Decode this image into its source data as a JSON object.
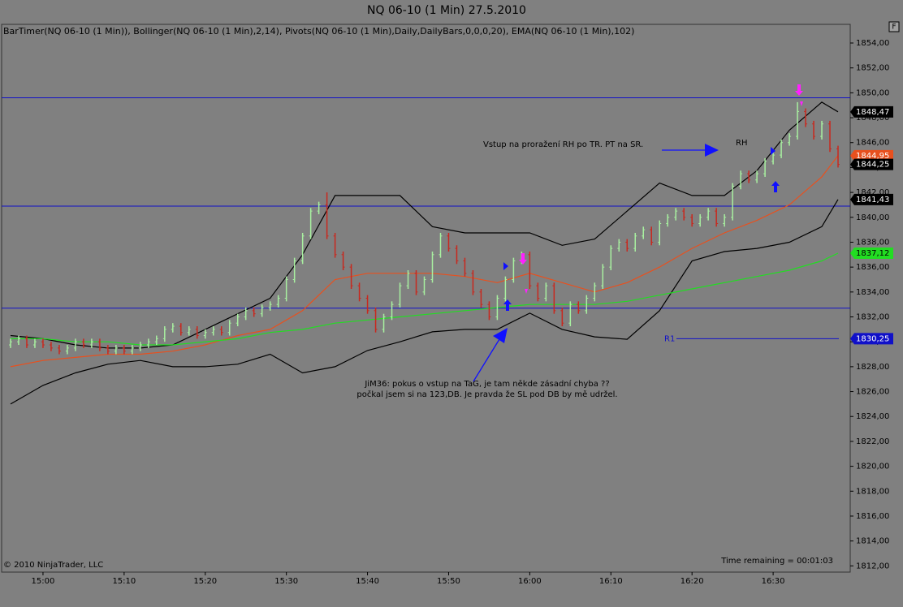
{
  "chart_data": {
    "type": "ohlc",
    "title": "NQ 06-10 (1 Min)  27.5.2010",
    "subtitle": "BarTimer(NQ 06-10 (1 Min)), Bollinger(NQ 06-10 (1 Min),2,14), Pivots(NQ 06-10 (1 Min),Daily,DailyBars,0,0,0,20), EMA(NQ 06-10 (1 Min),102)",
    "button": "F",
    "copyright": "© 2010 NinjaTrader, LLC",
    "time_remaining": "Time remaining = 00:01:03",
    "annotations": [
      "Vstup na proražení RH po TR. PT na SR.",
      "RH",
      "JiM36: pokus o vstup na TaG, je tam někde zásadní chyba ??",
      "počkal jsem si na 123,DB. Je pravda že SL pod  DB by mě udržel."
    ],
    "up_color": "#a8f0a0",
    "down_color": "#c8281e",
    "xlim": [
      -5.1,
      99.5
    ],
    "ylim": [
      1811.5,
      1855.5
    ],
    "xticks": [
      {
        "value": 0,
        "label": "15:00"
      },
      {
        "value": 10,
        "label": "15:10"
      },
      {
        "value": 20,
        "label": "15:20"
      },
      {
        "value": 30,
        "label": "15:30"
      },
      {
        "value": 40,
        "label": "15:40"
      },
      {
        "value": 50,
        "label": "15:50"
      },
      {
        "value": 60,
        "label": "16:00"
      },
      {
        "value": 70,
        "label": "16:10"
      },
      {
        "value": 80,
        "label": "16:20"
      },
      {
        "value": 90,
        "label": "16:30"
      }
    ],
    "yticks": [
      {
        "value": 1812,
        "label": "1812,00"
      },
      {
        "value": 1814,
        "label": "1814,00"
      },
      {
        "value": 1816,
        "label": "1816,00"
      },
      {
        "value": 1818,
        "label": "1818,00"
      },
      {
        "value": 1820,
        "label": "1820,00"
      },
      {
        "value": 1822,
        "label": "1822,00"
      },
      {
        "value": 1824,
        "label": "1824,00"
      },
      {
        "value": 1826,
        "label": "1826,00"
      },
      {
        "value": 1828,
        "label": "1828,00"
      },
      {
        "value": 1830,
        "label": "1830,00"
      },
      {
        "value": 1832,
        "label": "1832,00"
      },
      {
        "value": 1834,
        "label": "1834,00"
      },
      {
        "value": 1836,
        "label": "1836,00"
      },
      {
        "value": 1838,
        "label": "1838,00"
      },
      {
        "value": 1840,
        "label": "1840,00"
      },
      {
        "value": 1842,
        "label": "1842,00"
      },
      {
        "value": 1844,
        "label": "1844,00"
      },
      {
        "value": 1846,
        "label": "1846,00"
      },
      {
        "value": 1848,
        "label": "1848,00"
      },
      {
        "value": 1850,
        "label": "1850,00"
      },
      {
        "value": 1852,
        "label": "1852,00"
      },
      {
        "value": 1854,
        "label": "1854,00"
      }
    ],
    "x": [
      -4,
      -3,
      -2,
      -1,
      0,
      1,
      2,
      3,
      4,
      5,
      6,
      7,
      8,
      9,
      10,
      11,
      12,
      13,
      14,
      15,
      16,
      17,
      18,
      19,
      20,
      21,
      22,
      23,
      24,
      25,
      26,
      27,
      28,
      29,
      30,
      31,
      32,
      33,
      34,
      35,
      36,
      37,
      38,
      39,
      40,
      41,
      42,
      43,
      44,
      45,
      46,
      47,
      48,
      49,
      50,
      51,
      52,
      53,
      54,
      55,
      56,
      57,
      58,
      59,
      60,
      61,
      62,
      63,
      64,
      65,
      66,
      67,
      68,
      69,
      70,
      71,
      72,
      73,
      74,
      75,
      76,
      77,
      78,
      79,
      80,
      81,
      82,
      83,
      84,
      85,
      86,
      87,
      88,
      89,
      90,
      91,
      92,
      93,
      94,
      95,
      96,
      97,
      98
    ],
    "bars": [
      [
        1829.75,
        1830.25,
        1829.5,
        1830
      ],
      [
        1830,
        1830.5,
        1829.75,
        1830.25
      ],
      [
        1830.25,
        1830.5,
        1829.5,
        1829.75
      ],
      [
        1829.75,
        1830.25,
        1829.5,
        1830
      ],
      [
        1830,
        1830.25,
        1829.5,
        1829.75
      ],
      [
        1829.75,
        1830,
        1829.25,
        1829.5
      ],
      [
        1829.5,
        1829.75,
        1829,
        1829.25
      ],
      [
        1829.25,
        1829.75,
        1829,
        1829.5
      ],
      [
        1829.5,
        1830.25,
        1829.25,
        1830
      ],
      [
        1830,
        1830.25,
        1829.5,
        1829.75
      ],
      [
        1829.75,
        1830.25,
        1829.5,
        1830
      ],
      [
        1830,
        1830.25,
        1829.25,
        1829.5
      ],
      [
        1829.5,
        1829.75,
        1829,
        1829.25
      ],
      [
        1829.25,
        1829.75,
        1829,
        1829.5
      ],
      [
        1829.5,
        1829.75,
        1829,
        1829.25
      ],
      [
        1829.25,
        1829.75,
        1829,
        1829.5
      ],
      [
        1829.5,
        1830,
        1829.25,
        1829.75
      ],
      [
        1829.75,
        1830.25,
        1829.5,
        1830
      ],
      [
        1830,
        1830.5,
        1829.75,
        1830.25
      ],
      [
        1830.25,
        1831.25,
        1830,
        1831
      ],
      [
        1831,
        1831.5,
        1830.75,
        1831.25
      ],
      [
        1831.25,
        1831.5,
        1830.5,
        1830.75
      ],
      [
        1830.75,
        1831.25,
        1830.5,
        1831
      ],
      [
        1831,
        1831.25,
        1830.25,
        1830.5
      ],
      [
        1830.5,
        1831,
        1830.25,
        1830.75
      ],
      [
        1830.75,
        1831.25,
        1830.5,
        1831
      ],
      [
        1831,
        1831.25,
        1830.5,
        1830.75
      ],
      [
        1830.75,
        1831.75,
        1830.5,
        1831.5
      ],
      [
        1831.5,
        1832.25,
        1831.25,
        1832
      ],
      [
        1832,
        1832.75,
        1831.75,
        1832.5
      ],
      [
        1832.5,
        1832.75,
        1832,
        1832.25
      ],
      [
        1832.25,
        1833,
        1832,
        1832.75
      ],
      [
        1832.75,
        1833.25,
        1832.5,
        1833
      ],
      [
        1833,
        1833.75,
        1832.75,
        1833.5
      ],
      [
        1833.5,
        1835.25,
        1833.25,
        1835
      ],
      [
        1835,
        1836.75,
        1834.75,
        1836.5
      ],
      [
        1836.5,
        1838.75,
        1836.25,
        1838.5
      ],
      [
        1838.5,
        1840.75,
        1838.25,
        1840.5
      ],
      [
        1840.5,
        1841.25,
        1840.25,
        1841
      ],
      [
        1841,
        1842,
        1838.25,
        1838.5
      ],
      [
        1838.5,
        1838.75,
        1836.75,
        1837
      ],
      [
        1837,
        1837.25,
        1835.75,
        1836
      ],
      [
        1836,
        1836.25,
        1834.25,
        1834.5
      ],
      [
        1834.5,
        1834.75,
        1833.25,
        1833.5
      ],
      [
        1833.5,
        1833.75,
        1832.25,
        1832.5
      ],
      [
        1832.5,
        1832.75,
        1830.75,
        1831
      ],
      [
        1831,
        1832.25,
        1830.75,
        1832
      ],
      [
        1832,
        1833.25,
        1831.75,
        1833
      ],
      [
        1833,
        1834.75,
        1832.75,
        1834.5
      ],
      [
        1834.5,
        1835.75,
        1834.25,
        1835.5
      ],
      [
        1835.5,
        1835.75,
        1833.75,
        1834
      ],
      [
        1834,
        1835.25,
        1833.75,
        1835
      ],
      [
        1835,
        1837.25,
        1834.75,
        1837
      ],
      [
        1837,
        1838.75,
        1836.75,
        1838.5
      ],
      [
        1838.5,
        1838.75,
        1837.25,
        1837.5
      ],
      [
        1837.5,
        1837.75,
        1836.25,
        1836.5
      ],
      [
        1836.5,
        1836.75,
        1835.25,
        1835.5
      ],
      [
        1835.5,
        1835.75,
        1833.75,
        1834
      ],
      [
        1834,
        1834.25,
        1832.75,
        1833
      ],
      [
        1833,
        1833.25,
        1831.75,
        1832
      ],
      [
        1832,
        1833.75,
        1831.75,
        1833.5
      ],
      [
        1833.5,
        1835.25,
        1833.25,
        1835
      ],
      [
        1835,
        1836.75,
        1834.75,
        1836.5
      ],
      [
        1836.5,
        1837.25,
        1836.25,
        1837
      ],
      [
        1837,
        1837.25,
        1834.25,
        1834.5
      ],
      [
        1834.5,
        1834.75,
        1833.25,
        1833.5
      ],
      [
        1833.5,
        1834.75,
        1833.25,
        1834.5
      ],
      [
        1834.5,
        1834.75,
        1832.25,
        1832.5
      ],
      [
        1832.5,
        1832.75,
        1831.25,
        1831.5
      ],
      [
        1831.5,
        1833.25,
        1831.25,
        1833
      ],
      [
        1833,
        1833.25,
        1832.25,
        1832.5
      ],
      [
        1832.5,
        1833.75,
        1832.25,
        1833.5
      ],
      [
        1833.5,
        1834.75,
        1833.25,
        1834.5
      ],
      [
        1834.5,
        1836.25,
        1834.25,
        1836
      ],
      [
        1836,
        1837.75,
        1835.75,
        1837.5
      ],
      [
        1837.5,
        1838.25,
        1837.25,
        1838
      ],
      [
        1838,
        1838.25,
        1837.25,
        1837.5
      ],
      [
        1837.5,
        1838.75,
        1837.25,
        1838.5
      ],
      [
        1838.5,
        1839.25,
        1838.25,
        1839
      ],
      [
        1839,
        1839.25,
        1837.75,
        1838
      ],
      [
        1838,
        1839.75,
        1837.75,
        1839.5
      ],
      [
        1839.5,
        1840.25,
        1839.25,
        1840
      ],
      [
        1840,
        1840.75,
        1839.75,
        1840.5
      ],
      [
        1840.5,
        1840.75,
        1839.75,
        1840
      ],
      [
        1840,
        1840.25,
        1839.25,
        1839.5
      ],
      [
        1839.5,
        1840.25,
        1839.25,
        1840
      ],
      [
        1840,
        1840.75,
        1839.75,
        1840.5
      ],
      [
        1840.5,
        1840.75,
        1839.25,
        1839.5
      ],
      [
        1839.5,
        1840.25,
        1839.25,
        1840
      ],
      [
        1840,
        1842.75,
        1839.75,
        1842.5
      ],
      [
        1842.5,
        1843.75,
        1842.25,
        1843.5
      ],
      [
        1843.5,
        1843.75,
        1842.75,
        1843
      ],
      [
        1843,
        1843.75,
        1842.75,
        1843.5
      ],
      [
        1843.5,
        1844.75,
        1843.25,
        1844.5
      ],
      [
        1844.5,
        1845.25,
        1844.25,
        1845
      ],
      [
        1845,
        1846.25,
        1844.75,
        1846
      ],
      [
        1846,
        1846.75,
        1845.75,
        1846.5
      ],
      [
        1846.5,
        1849.25,
        1846.25,
        1848.5
      ],
      [
        1848.5,
        1848.75,
        1847.25,
        1847.5
      ],
      [
        1847.5,
        1847.75,
        1846.25,
        1846.5
      ],
      [
        1846.5,
        1847.75,
        1846.25,
        1847.5
      ],
      [
        1847.5,
        1847.75,
        1845.25,
        1845.5
      ],
      [
        1845.5,
        1845.75,
        1844,
        1844.25
      ]
    ],
    "lines": {
      "x": [
        -4,
        0,
        4,
        8,
        12,
        16,
        20,
        24,
        28,
        32,
        36,
        40,
        44,
        48,
        52,
        56,
        60,
        64,
        68,
        72,
        76,
        80,
        84,
        88,
        92,
        96,
        98
      ],
      "series": [
        {
          "color": "#000000",
          "values": [
            1830.5,
            1830.25,
            1829.75,
            1829.5,
            1829.5,
            1829.75,
            1831,
            1832.25,
            1833.5,
            1837,
            1841.75,
            1841.75,
            1841.75,
            1839.25,
            1838.75,
            1838.75,
            1838.75,
            1837.75,
            1838.25,
            1840.5,
            1842.75,
            1841.75,
            1841.75,
            1843.75,
            1847,
            1849.25,
            1848.47
          ]
        },
        {
          "color": "#000000",
          "values": [
            1825,
            1826.5,
            1827.5,
            1828.2,
            1828.5,
            1828,
            1828,
            1828.2,
            1829,
            1827.5,
            1828,
            1829.3,
            1830,
            1830.8,
            1831,
            1831,
            1832.3,
            1831,
            1830.4,
            1830.2,
            1832.5,
            1836.5,
            1837.25,
            1837.5,
            1838,
            1839.25,
            1841.43
          ]
        },
        {
          "color": "#e8501e",
          "values": [
            1828,
            1828.5,
            1828.75,
            1829,
            1829,
            1829.25,
            1829.75,
            1830.5,
            1831,
            1832.5,
            1835,
            1835.5,
            1835.5,
            1835.5,
            1835.25,
            1834.75,
            1835.5,
            1834.75,
            1834,
            1834.75,
            1836,
            1837.5,
            1838.75,
            1839.75,
            1841,
            1843.25,
            1844.95
          ]
        },
        {
          "color": "#22dd22",
          "values": [
            1830.25,
            1830.25,
            1830,
            1830,
            1829.75,
            1829.75,
            1830,
            1830.25,
            1830.75,
            1831,
            1831.5,
            1831.75,
            1832,
            1832.25,
            1832.5,
            1832.75,
            1833,
            1833,
            1833,
            1833.25,
            1833.75,
            1834.25,
            1834.75,
            1835.25,
            1835.75,
            1836.5,
            1837.12
          ]
        }
      ]
    },
    "pivot_color": "#1010c8",
    "pivots": [
      {
        "value": 1849.6
      },
      {
        "value": 1840.9
      },
      {
        "value": 1832.7
      },
      {
        "value": 1830.25,
        "label": "R1"
      }
    ],
    "price_markers": [
      {
        "value": 1848.47,
        "label": "1848,47",
        "color": "#000000",
        "text_color": "#ffffff"
      },
      {
        "value": 1844.95,
        "label": "1844,95",
        "color": "#e8501e",
        "text_color": "#ffffff"
      },
      {
        "value": 1844.25,
        "label": "1844,25",
        "color": "#000000",
        "text_color": "#ffffff"
      },
      {
        "value": 1841.43,
        "label": "1841,43",
        "color": "#000000",
        "text_color": "#ffffff"
      },
      {
        "value": 1837.12,
        "label": "1837,12",
        "color": "#22dd22",
        "text_color": "#000000"
      },
      {
        "value": 1830.25,
        "label": "1830,25",
        "color": "#1010c8",
        "text_color": "#ffffff"
      }
    ]
  }
}
